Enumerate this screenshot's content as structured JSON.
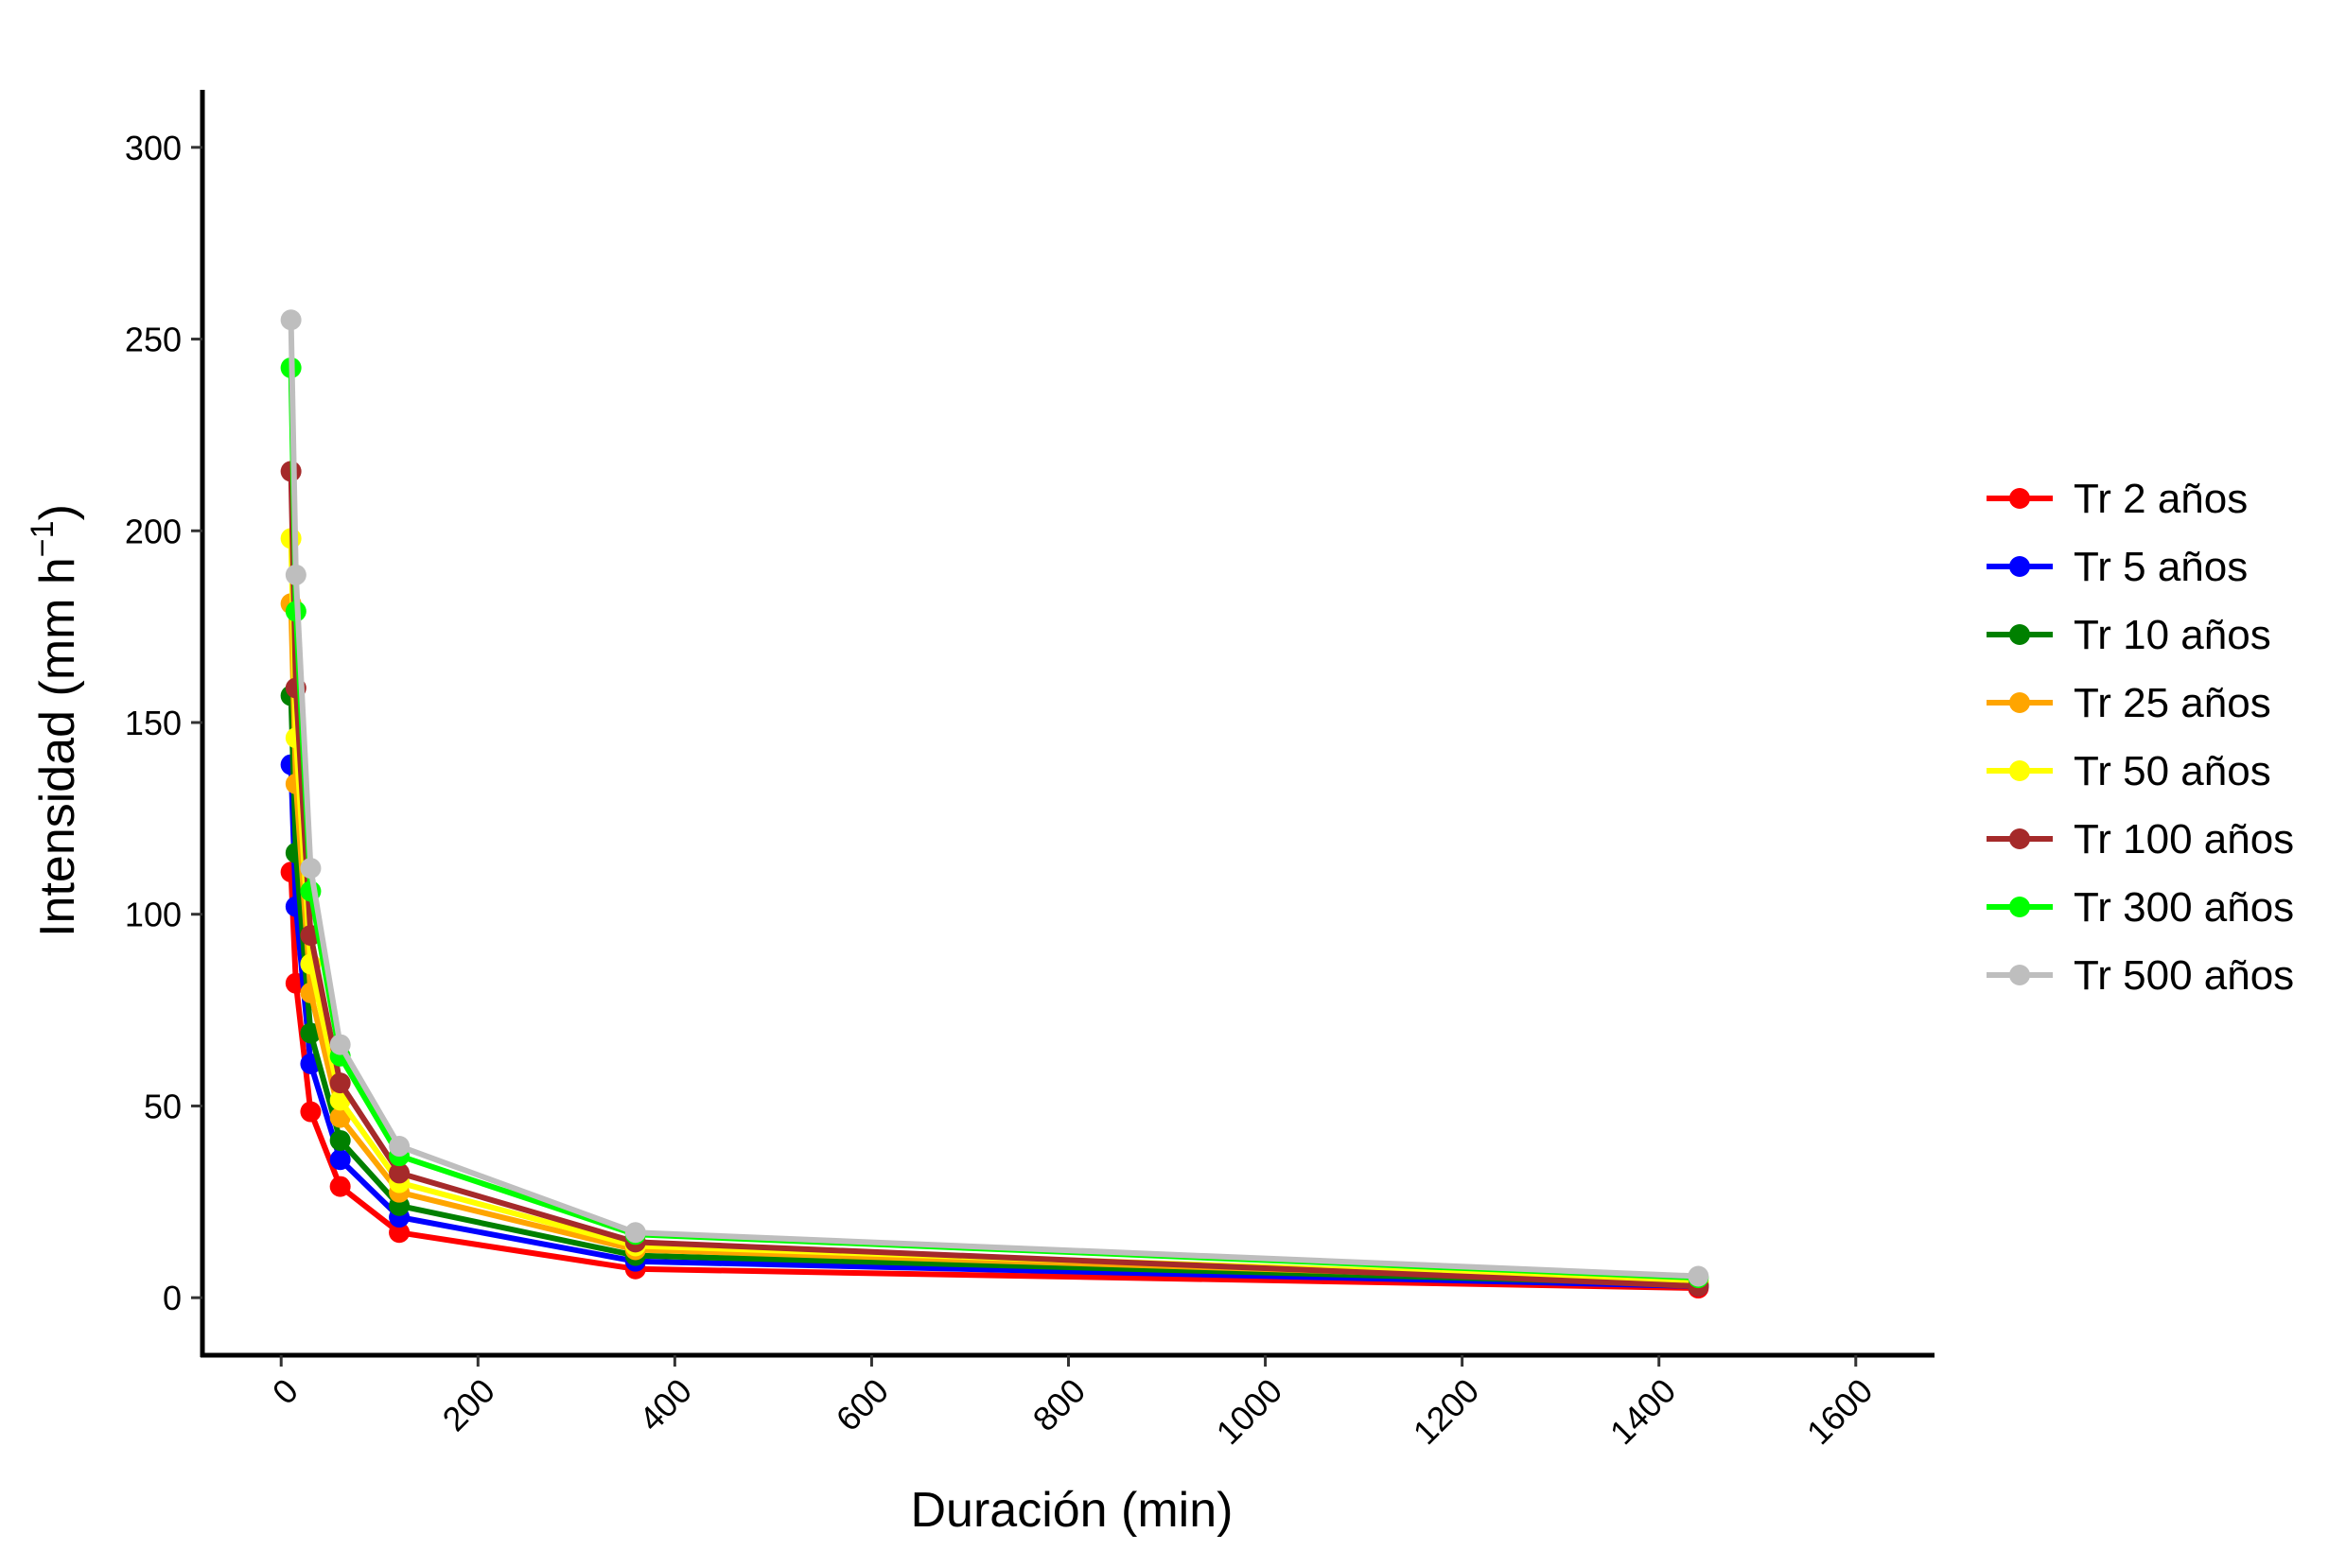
{
  "chart_data": {
    "type": "line",
    "title": "",
    "xlabel": "Duración (min)",
    "ylabel": {
      "main": "Intensidad (mm  h",
      "superscript": "−1",
      "close": ")"
    },
    "xlim": [
      -80,
      1680
    ],
    "ylim": [
      -15,
      315
    ],
    "xticks": [
      0,
      200,
      400,
      600,
      800,
      1000,
      1200,
      1400,
      1600
    ],
    "yticks": [
      0,
      50,
      100,
      150,
      200,
      250,
      300
    ],
    "grid": false,
    "legend_position": "right",
    "x": [
      10,
      15,
      30,
      60,
      120,
      360,
      1440
    ],
    "series": [
      {
        "name": "Tr 2 años",
        "color": "#ff0000",
        "values": [
          111,
          82,
          48.5,
          29,
          17,
          7.5,
          2.5
        ]
      },
      {
        "name": "Tr 5 años",
        "color": "#0000ff",
        "values": [
          139,
          102,
          61,
          36,
          21,
          9.5,
          3
        ]
      },
      {
        "name": "Tr 10 años",
        "color": "#008000",
        "values": [
          157,
          116,
          69,
          41,
          24,
          11,
          3.5
        ]
      },
      {
        "name": "Tr 25 años",
        "color": "#ffa500",
        "values": [
          181,
          134,
          79.5,
          47,
          27.5,
          12.5,
          4
        ]
      },
      {
        "name": "Tr 50 años",
        "color": "#ffff00",
        "values": [
          198,
          146,
          87,
          51.5,
          30,
          13.5,
          4.3
        ]
      },
      {
        "name": "Tr 100 años",
        "color": "#a52a2a",
        "values": [
          215.5,
          159,
          94.5,
          56,
          32.5,
          14.5,
          3
        ]
      },
      {
        "name": "Tr 300 años",
        "color": "#00ff00",
        "values": [
          242.5,
          179,
          106,
          63,
          37,
          16.5,
          5.2
        ]
      },
      {
        "name": "Tr 500 años",
        "color": "#bebebe",
        "values": [
          255,
          188.5,
          112,
          66,
          39.5,
          17,
          5.6
        ]
      }
    ]
  }
}
